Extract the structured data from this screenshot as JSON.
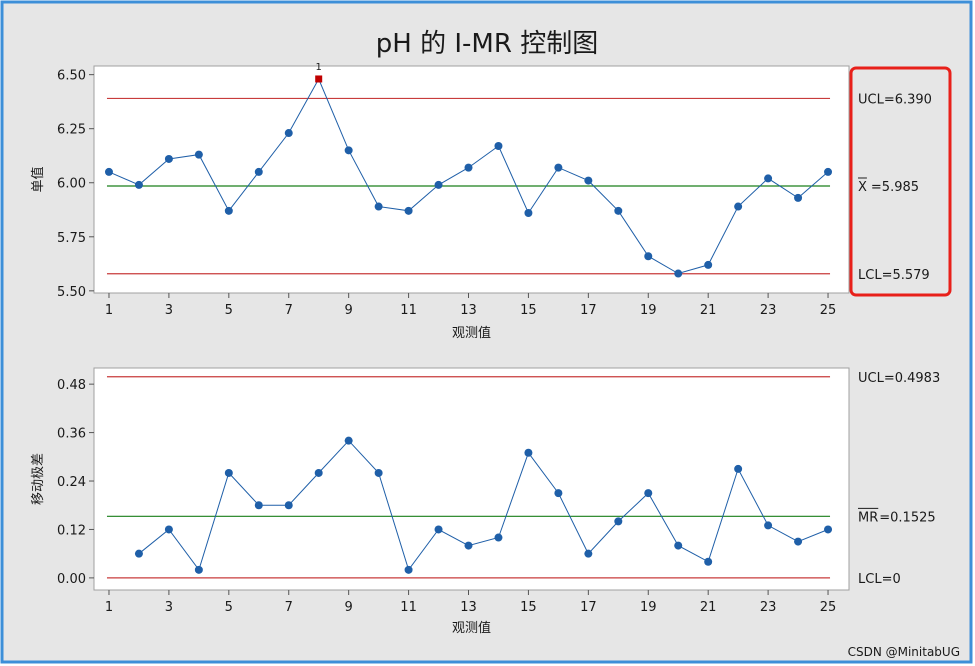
{
  "title": "pH 的 I-MR 控制图",
  "watermark": "CSDN @MinitabUG",
  "colors": {
    "frame_border": "#3d8fd8",
    "background": "#e6e6e6",
    "plot_bg": "#ffffff",
    "series": "#1f5fa8",
    "center_line": "#1a7f1a",
    "limit_line": "#c83c3c",
    "flagged_point": "#c00000",
    "highlight_box": "#e8201a"
  },
  "chart_data": [
    {
      "type": "line",
      "name": "individuals",
      "ylabel": "单值",
      "xlabel": "观测值",
      "x": [
        1,
        2,
        3,
        4,
        5,
        6,
        7,
        8,
        9,
        10,
        11,
        12,
        13,
        14,
        15,
        16,
        17,
        18,
        19,
        20,
        21,
        22,
        23,
        24,
        25
      ],
      "values": [
        6.05,
        5.99,
        6.11,
        6.13,
        5.87,
        6.05,
        6.23,
        6.48,
        6.15,
        5.89,
        5.87,
        5.99,
        6.07,
        6.17,
        5.86,
        6.07,
        6.01,
        5.87,
        5.66,
        5.58,
        5.62,
        5.89,
        6.02,
        5.93,
        6.05
      ],
      "flagged": [
        {
          "x": 8,
          "label": "1"
        }
      ],
      "ylim": [
        5.49,
        6.54
      ],
      "yticks": [
        "5.50",
        "5.75",
        "6.00",
        "6.25",
        "6.50"
      ],
      "xticks": [
        "1",
        "3",
        "5",
        "7",
        "9",
        "11",
        "13",
        "15",
        "17",
        "19",
        "21",
        "23",
        "25"
      ],
      "xlim": [
        0.5,
        25.7
      ],
      "limits": {
        "ucl": 6.39,
        "center": 5.985,
        "lcl": 5.579
      },
      "limit_labels": {
        "ucl": "UCL=6.390",
        "center_symbol": "X",
        "center": "=5.985",
        "lcl": "LCL=5.579"
      },
      "highlighted": true
    },
    {
      "type": "line",
      "name": "moving-range",
      "ylabel": "移动极差",
      "xlabel": "观测值",
      "x": [
        2,
        3,
        4,
        5,
        6,
        7,
        8,
        9,
        10,
        11,
        12,
        13,
        14,
        15,
        16,
        17,
        18,
        19,
        20,
        21,
        22,
        23,
        24,
        25
      ],
      "values": [
        0.06,
        0.12,
        0.02,
        0.26,
        0.18,
        0.18,
        0.26,
        0.34,
        0.26,
        0.02,
        0.12,
        0.08,
        0.1,
        0.31,
        0.21,
        0.06,
        0.14,
        0.21,
        0.08,
        0.04,
        0.27,
        0.13,
        0.09,
        0.12
      ],
      "flagged": [],
      "ylim": [
        -0.03,
        0.52
      ],
      "yticks": [
        "0.00",
        "0.12",
        "0.24",
        "0.36",
        "0.48"
      ],
      "xticks": [
        "1",
        "3",
        "5",
        "7",
        "9",
        "11",
        "13",
        "15",
        "17",
        "19",
        "21",
        "23",
        "25"
      ],
      "xlim": [
        0.5,
        25.7
      ],
      "limits": {
        "ucl": 0.4983,
        "center": 0.1525,
        "lcl": 0
      },
      "limit_labels": {
        "ucl": "UCL=0.4983",
        "center_symbol": "MR",
        "center": "=0.1525",
        "lcl": "LCL=0"
      },
      "highlighted": false
    }
  ]
}
